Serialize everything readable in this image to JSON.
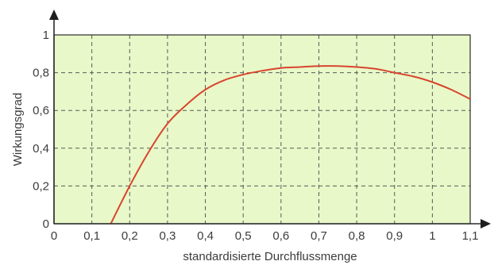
{
  "chart_data": {
    "type": "line",
    "title": "",
    "xlabel": "standardisierte Durchflussmenge",
    "ylabel": "Wirkungsgrad",
    "xlim": [
      0,
      1.1
    ],
    "ylim": [
      0,
      1
    ],
    "grid": true,
    "background_color": "#e8f8c8",
    "line_color": "#d9442e",
    "x_ticks": [
      "0",
      "0,1",
      "0,2",
      "0,3",
      "0,4",
      "0,5",
      "0,6",
      "0,7",
      "0,8",
      "0,9",
      "1",
      "1,1"
    ],
    "y_ticks": [
      "0",
      "0,2",
      "0,4",
      "0,6",
      "0,8",
      "1"
    ],
    "series": [
      {
        "x": [
          0.15,
          0.2,
          0.25,
          0.3,
          0.35,
          0.4,
          0.45,
          0.5,
          0.55,
          0.6,
          0.65,
          0.7,
          0.75,
          0.8,
          0.85,
          0.9,
          0.95,
          1.0,
          1.05,
          1.1
        ],
        "y": [
          0.0,
          0.2,
          0.38,
          0.53,
          0.63,
          0.71,
          0.76,
          0.79,
          0.81,
          0.825,
          0.83,
          0.835,
          0.835,
          0.83,
          0.82,
          0.8,
          0.78,
          0.75,
          0.71,
          0.66
        ]
      }
    ]
  }
}
